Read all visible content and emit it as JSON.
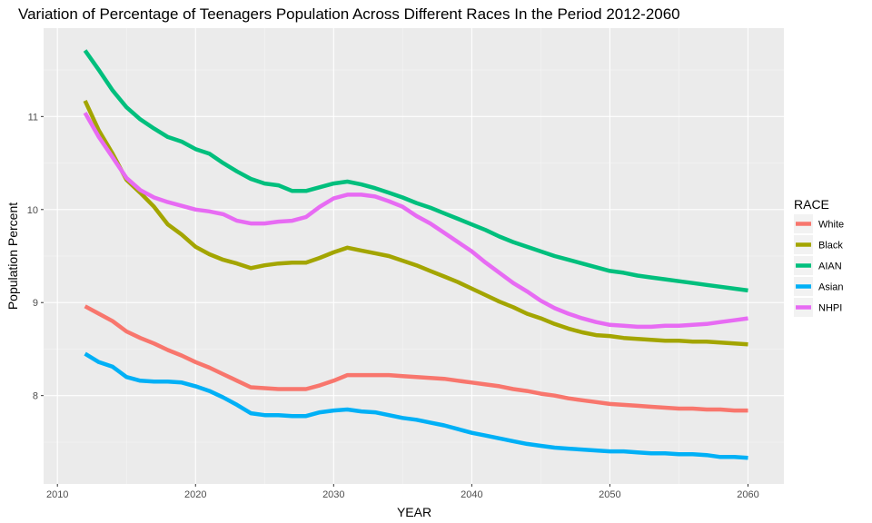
{
  "chart_data": {
    "type": "line",
    "title": "Variation of Percentage of Teenagers Population Across Different Races In the Period 2012-2060",
    "xlabel": "YEAR",
    "ylabel": "Population Percent",
    "xlim": [
      2009,
      2062.6
    ],
    "ylim": [
      7.05,
      11.95
    ],
    "x_ticks": [
      2010,
      2020,
      2030,
      2040,
      2050,
      2060
    ],
    "y_ticks": [
      8,
      9,
      10,
      11
    ],
    "grid": true,
    "legend": {
      "title": "RACE",
      "position": "right"
    },
    "series": [
      {
        "name": "White",
        "color": "#F8766D",
        "x": [
          2012,
          2013,
          2014,
          2015,
          2016,
          2017,
          2018,
          2019,
          2020,
          2021,
          2022,
          2023,
          2024,
          2025,
          2026,
          2027,
          2028,
          2029,
          2030,
          2031,
          2032,
          2033,
          2034,
          2035,
          2036,
          2037,
          2038,
          2039,
          2040,
          2041,
          2042,
          2043,
          2044,
          2045,
          2046,
          2047,
          2048,
          2049,
          2050,
          2051,
          2052,
          2053,
          2054,
          2055,
          2056,
          2057,
          2058,
          2059,
          2060
        ],
        "values": [
          8.96,
          8.88,
          8.8,
          8.69,
          8.62,
          8.56,
          8.49,
          8.43,
          8.36,
          8.3,
          8.23,
          8.16,
          8.09,
          8.08,
          8.07,
          8.07,
          8.07,
          8.11,
          8.16,
          8.22,
          8.22,
          8.22,
          8.22,
          8.21,
          8.2,
          8.19,
          8.18,
          8.16,
          8.14,
          8.12,
          8.1,
          8.07,
          8.05,
          8.02,
          8.0,
          7.97,
          7.95,
          7.93,
          7.91,
          7.9,
          7.89,
          7.88,
          7.87,
          7.86,
          7.86,
          7.85,
          7.85,
          7.84,
          7.84
        ]
      },
      {
        "name": "Black",
        "color": "#A3A500",
        "x": [
          2012,
          2013,
          2014,
          2015,
          2016,
          2017,
          2018,
          2019,
          2020,
          2021,
          2022,
          2023,
          2024,
          2025,
          2026,
          2027,
          2028,
          2029,
          2030,
          2031,
          2032,
          2033,
          2034,
          2035,
          2036,
          2037,
          2038,
          2039,
          2040,
          2041,
          2042,
          2043,
          2044,
          2045,
          2046,
          2047,
          2048,
          2049,
          2050,
          2051,
          2052,
          2053,
          2054,
          2055,
          2056,
          2057,
          2058,
          2059,
          2060
        ],
        "values": [
          11.17,
          10.85,
          10.6,
          10.32,
          10.18,
          10.03,
          9.84,
          9.73,
          9.6,
          9.52,
          9.46,
          9.42,
          9.37,
          9.4,
          9.42,
          9.43,
          9.43,
          9.48,
          9.54,
          9.59,
          9.56,
          9.53,
          9.5,
          9.45,
          9.4,
          9.34,
          9.28,
          9.22,
          9.15,
          9.08,
          9.01,
          8.95,
          8.88,
          8.83,
          8.77,
          8.72,
          8.68,
          8.65,
          8.64,
          8.62,
          8.61,
          8.6,
          8.59,
          8.59,
          8.58,
          8.58,
          8.57,
          8.56,
          8.55
        ]
      },
      {
        "name": "AIAN",
        "color": "#00BF7D",
        "x": [
          2012,
          2013,
          2014,
          2015,
          2016,
          2017,
          2018,
          2019,
          2020,
          2021,
          2022,
          2023,
          2024,
          2025,
          2026,
          2027,
          2028,
          2029,
          2030,
          2031,
          2032,
          2033,
          2034,
          2035,
          2036,
          2037,
          2038,
          2039,
          2040,
          2041,
          2042,
          2043,
          2044,
          2045,
          2046,
          2047,
          2048,
          2049,
          2050,
          2051,
          2052,
          2053,
          2054,
          2055,
          2056,
          2057,
          2058,
          2059,
          2060
        ],
        "values": [
          11.71,
          11.5,
          11.28,
          11.1,
          10.97,
          10.87,
          10.78,
          10.73,
          10.65,
          10.6,
          10.5,
          10.41,
          10.33,
          10.28,
          10.26,
          10.2,
          10.2,
          10.24,
          10.28,
          10.3,
          10.27,
          10.23,
          10.18,
          10.13,
          10.07,
          10.02,
          9.96,
          9.9,
          9.84,
          9.78,
          9.71,
          9.65,
          9.6,
          9.55,
          9.5,
          9.46,
          9.42,
          9.38,
          9.34,
          9.32,
          9.29,
          9.27,
          9.25,
          9.23,
          9.21,
          9.19,
          9.17,
          9.15,
          9.13
        ]
      },
      {
        "name": "Asian",
        "color": "#00B0F6",
        "x": [
          2012,
          2013,
          2014,
          2015,
          2016,
          2017,
          2018,
          2019,
          2020,
          2021,
          2022,
          2023,
          2024,
          2025,
          2026,
          2027,
          2028,
          2029,
          2030,
          2031,
          2032,
          2033,
          2034,
          2035,
          2036,
          2037,
          2038,
          2039,
          2040,
          2041,
          2042,
          2043,
          2044,
          2045,
          2046,
          2047,
          2048,
          2049,
          2050,
          2051,
          2052,
          2053,
          2054,
          2055,
          2056,
          2057,
          2058,
          2059,
          2060
        ],
        "values": [
          8.45,
          8.36,
          8.31,
          8.2,
          8.16,
          8.15,
          8.15,
          8.14,
          8.1,
          8.05,
          7.98,
          7.9,
          7.81,
          7.79,
          7.79,
          7.78,
          7.78,
          7.82,
          7.84,
          7.85,
          7.83,
          7.82,
          7.79,
          7.76,
          7.74,
          7.71,
          7.68,
          7.64,
          7.6,
          7.57,
          7.54,
          7.51,
          7.48,
          7.46,
          7.44,
          7.43,
          7.42,
          7.41,
          7.4,
          7.4,
          7.39,
          7.38,
          7.38,
          7.37,
          7.37,
          7.36,
          7.34,
          7.34,
          7.33
        ]
      },
      {
        "name": "NHPI",
        "color": "#E76BF3",
        "x": [
          2012,
          2013,
          2014,
          2015,
          2016,
          2017,
          2018,
          2019,
          2020,
          2021,
          2022,
          2023,
          2024,
          2025,
          2026,
          2027,
          2028,
          2029,
          2030,
          2031,
          2032,
          2033,
          2034,
          2035,
          2036,
          2037,
          2038,
          2039,
          2040,
          2041,
          2042,
          2043,
          2044,
          2045,
          2046,
          2047,
          2048,
          2049,
          2050,
          2051,
          2052,
          2053,
          2054,
          2055,
          2056,
          2057,
          2058,
          2059,
          2060
        ],
        "values": [
          11.04,
          10.78,
          10.56,
          10.34,
          10.21,
          10.13,
          10.08,
          10.04,
          10.0,
          9.98,
          9.95,
          9.88,
          9.85,
          9.85,
          9.87,
          9.88,
          9.92,
          10.03,
          10.12,
          10.16,
          10.16,
          10.14,
          10.09,
          10.03,
          9.93,
          9.85,
          9.75,
          9.65,
          9.55,
          9.43,
          9.32,
          9.21,
          9.12,
          9.02,
          8.94,
          8.88,
          8.83,
          8.79,
          8.76,
          8.75,
          8.74,
          8.74,
          8.75,
          8.75,
          8.76,
          8.77,
          8.79,
          8.81,
          8.83
        ]
      }
    ]
  }
}
